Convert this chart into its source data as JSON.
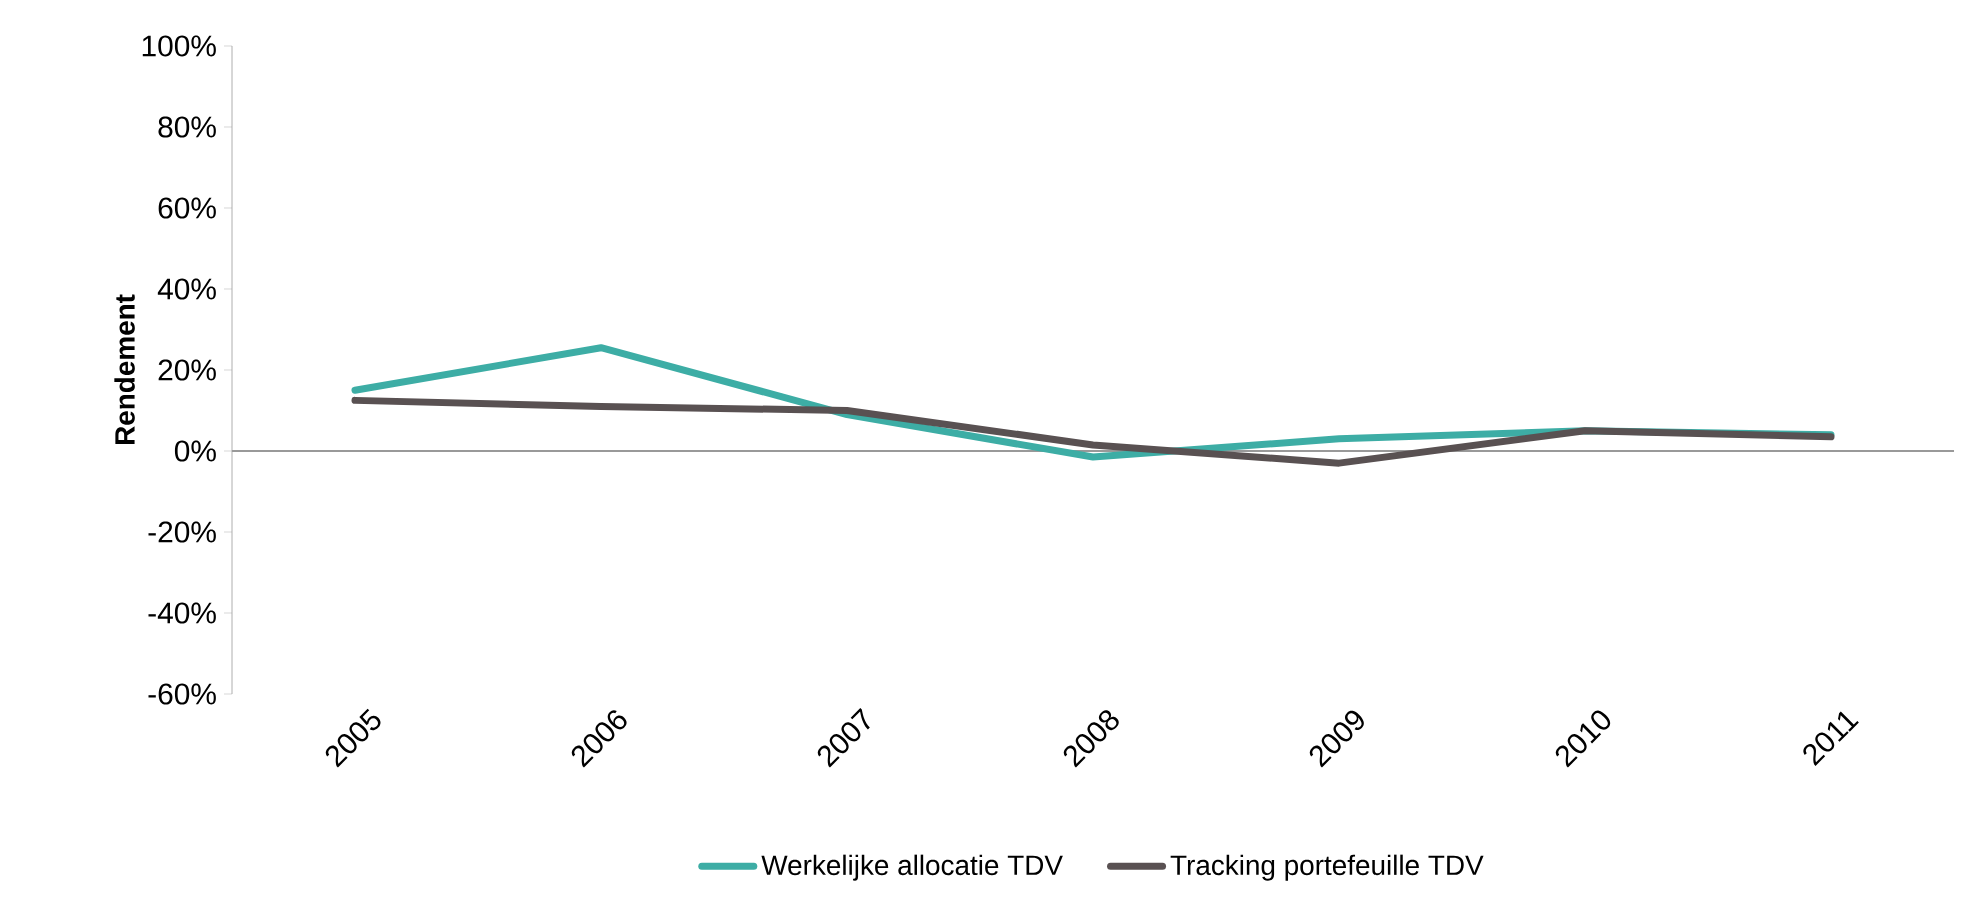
{
  "chart_data": {
    "type": "line",
    "ylabel": "Rendement",
    "categories": [
      "2005",
      "2006",
      "2007",
      "2008",
      "2009",
      "2010",
      "2011"
    ],
    "series": [
      {
        "name": "Werkelijke allocatie TDV",
        "color": "#3dada5",
        "values": [
          15,
          25.5,
          9,
          -1.5,
          3,
          5,
          4
        ]
      },
      {
        "name": "Tracking portefeuille TDV",
        "color": "#595152",
        "values": [
          12.5,
          11,
          10,
          1.5,
          -3,
          5,
          3.5
        ]
      }
    ],
    "ylim": [
      -60,
      100
    ],
    "yticks": [
      {
        "value": -60,
        "label": "-60%"
      },
      {
        "value": -40,
        "label": "-40%"
      },
      {
        "value": -20,
        "label": "-20%"
      },
      {
        "value": 0,
        "label": "0%"
      },
      {
        "value": 20,
        "label": "20%"
      },
      {
        "value": 40,
        "label": "40%"
      },
      {
        "value": 60,
        "label": "60%"
      },
      {
        "value": 80,
        "label": "80%"
      },
      {
        "value": 100,
        "label": "100%"
      }
    ],
    "legend": "bottom",
    "marker": "none",
    "line_style": "solid"
  }
}
